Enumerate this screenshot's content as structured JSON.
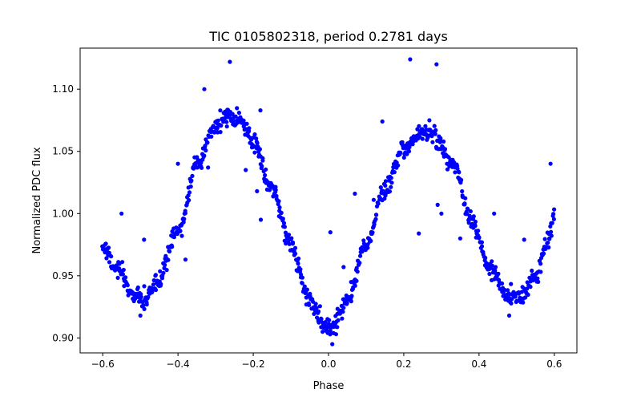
{
  "chart_data": {
    "type": "scatter",
    "title": "TIC 0105802318, period 0.2781 days",
    "xlabel": "Phase",
    "ylabel": "Normalized PDC flux",
    "xlim": [
      -0.66,
      0.66
    ],
    "ylim": [
      0.888,
      1.133
    ],
    "xticks": [
      -0.6,
      -0.4,
      -0.2,
      0.0,
      0.2,
      0.4,
      0.6
    ],
    "xtick_labels": [
      "−0.6",
      "−0.4",
      "−0.2",
      "0.0",
      "0.2",
      "0.4",
      "0.6"
    ],
    "yticks": [
      0.9,
      0.95,
      1.0,
      1.05,
      1.1
    ],
    "ytick_labels": [
      "0.90",
      "0.95",
      "1.00",
      "1.05",
      "1.10"
    ],
    "grid": false,
    "legend": "none",
    "marker_color": "#0000ff",
    "series": [
      {
        "curve_anchors": [
          [
            -0.6,
            0.974
          ],
          [
            -0.56,
            0.955
          ],
          [
            -0.52,
            0.935
          ],
          [
            -0.49,
            0.93
          ],
          [
            -0.46,
            0.942
          ],
          [
            -0.4,
            0.985
          ],
          [
            -0.35,
            1.04
          ],
          [
            -0.3,
            1.07
          ],
          [
            -0.27,
            1.08
          ],
          [
            -0.24,
            1.076
          ],
          [
            -0.2,
            1.058
          ],
          [
            -0.15,
            1.02
          ],
          [
            -0.1,
            0.975
          ],
          [
            -0.05,
            0.93
          ],
          [
            -0.01,
            0.91
          ],
          [
            0.01,
            0.908
          ],
          [
            0.05,
            0.93
          ],
          [
            0.1,
            0.975
          ],
          [
            0.15,
            1.02
          ],
          [
            0.2,
            1.052
          ],
          [
            0.25,
            1.065
          ],
          [
            0.28,
            1.062
          ],
          [
            0.33,
            1.04
          ],
          [
            0.38,
            0.995
          ],
          [
            0.43,
            0.955
          ],
          [
            0.48,
            0.932
          ],
          [
            0.51,
            0.932
          ],
          [
            0.55,
            0.95
          ],
          [
            0.58,
            0.975
          ],
          [
            0.6,
            0.998
          ]
        ],
        "outliers": [
          [
            -0.262,
            1.122
          ],
          [
            -0.33,
            1.1
          ],
          [
            0.217,
            1.124
          ],
          [
            0.287,
            1.12
          ],
          [
            0.268,
            1.075
          ],
          [
            0.143,
            1.074
          ],
          [
            -0.181,
            1.083
          ],
          [
            -0.27,
            1.07
          ],
          [
            -0.4,
            1.04
          ],
          [
            -0.32,
            1.037
          ],
          [
            -0.22,
            1.035
          ],
          [
            -0.19,
            1.018
          ],
          [
            -0.18,
            0.995
          ],
          [
            -0.38,
            0.963
          ],
          [
            -0.49,
            0.979
          ],
          [
            -0.55,
            1.0
          ],
          [
            -0.46,
            0.95
          ],
          [
            -0.47,
            0.94
          ],
          [
            -0.5,
            0.918
          ],
          [
            0.07,
            1.016
          ],
          [
            0.12,
            1.011
          ],
          [
            0.005,
            0.985
          ],
          [
            0.04,
            0.957
          ],
          [
            0.24,
            0.984
          ],
          [
            0.29,
            1.007
          ],
          [
            0.3,
            1.0
          ],
          [
            0.35,
            0.98
          ],
          [
            0.44,
            1.0
          ],
          [
            0.52,
            0.979
          ],
          [
            0.59,
            1.04
          ],
          [
            0.48,
            0.918
          ],
          [
            0.01,
            0.895
          ],
          [
            0.02,
            0.903
          ],
          [
            0.06,
            0.945
          ]
        ]
      }
    ]
  }
}
